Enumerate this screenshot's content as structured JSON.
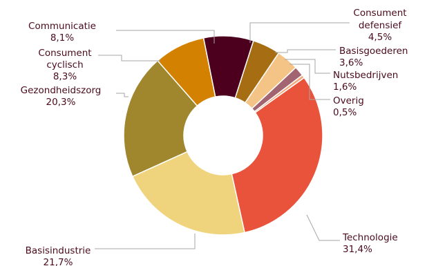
{
  "chart_data": {
    "type": "pie",
    "donut": true,
    "slices": [
      {
        "label": "Technologie",
        "value_label": "31,4%",
        "value": 31.4,
        "color": "#EA533B"
      },
      {
        "label": "Basisindustrie",
        "value_label": "21,7%",
        "value": 21.7,
        "color": "#F0D37D"
      },
      {
        "label": "Gezondheidszorg",
        "value_label": "20,3%",
        "value": 20.3,
        "color": "#A0862C"
      },
      {
        "label": "Consument cyclisch",
        "value_label": "8,3%",
        "value": 8.3,
        "color": "#D38101"
      },
      {
        "label": "Communicatie",
        "value_label": "8,1%",
        "value": 8.1,
        "color": "#4D001D"
      },
      {
        "label": "Consument defensief",
        "value_label": "4,5%",
        "value": 4.5,
        "color": "#A76D12"
      },
      {
        "label": "Basisgoederen",
        "value_label": "3,6%",
        "value": 3.6,
        "color": "#F4C386"
      },
      {
        "label": "Nutsbedrijven",
        "value_label": "1,6%",
        "value": 1.6,
        "color": "#A26470"
      },
      {
        "label": "Overig",
        "value_label": "0,5%",
        "value": 0.5,
        "color": "#F1A87B"
      }
    ]
  }
}
